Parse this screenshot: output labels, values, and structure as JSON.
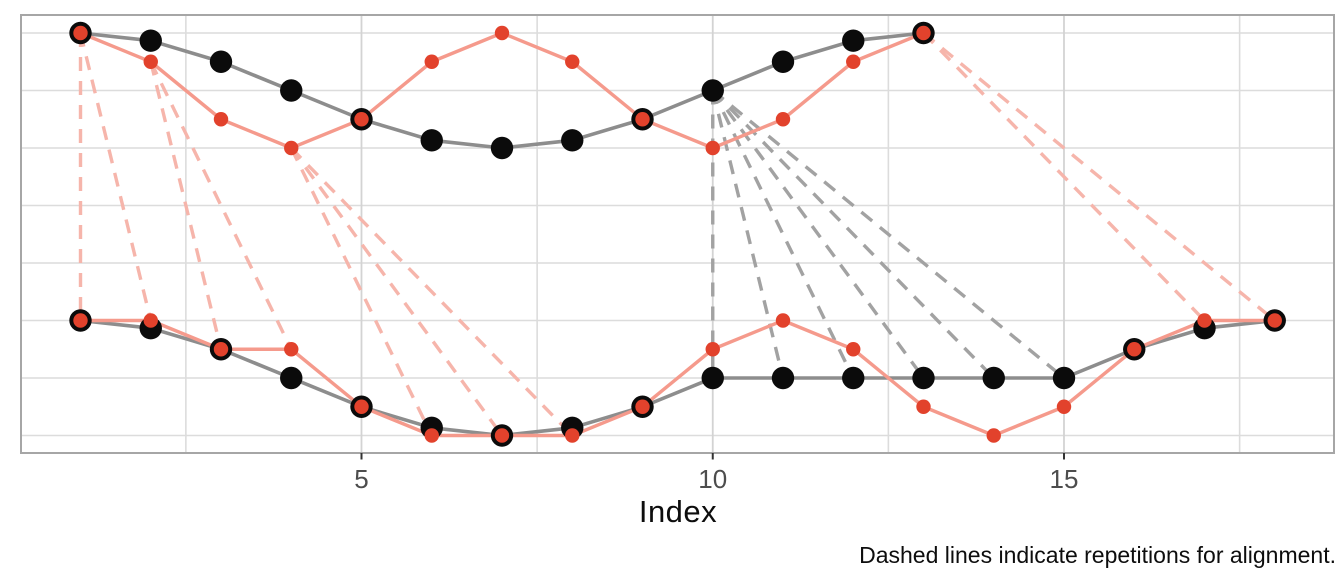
{
  "figure": {
    "xlabel": "Index",
    "caption": "Dashed lines indicate repetitions for alignment."
  },
  "colors": {
    "black_point": "#0b0b0b",
    "red_point": "#e2422c",
    "gray_line": "#8d8d8d",
    "salmon_line": "#f59a8c",
    "gray_dash": "#a2a2a2",
    "pink_dash": "#f6b5ab",
    "gridline_minor": "#dcdcdc",
    "gridline_major": "#d3d3d3",
    "panel_border": "#a6a6a6",
    "tick_mark": "#333333",
    "tick_label": "#4d4d4d"
  },
  "chart_data": {
    "type": "line",
    "title": "",
    "xlabel": "Index",
    "ylabel": "",
    "caption": "Dashed lines indicate repetitions for alignment.",
    "grid": "on",
    "legend": "none",
    "x_ticks": [
      5,
      10,
      15
    ],
    "x_minor_gridlines": [
      2.5,
      7.5,
      12.5,
      17.5
    ],
    "xlim": [
      0.15,
      18.85
    ],
    "rows": [
      "original-top",
      "aligned-bottom"
    ],
    "series": [
      {
        "name": "top-black",
        "row": "original",
        "color": "#0b0b0b",
        "x": [
          1,
          2,
          3,
          4,
          5,
          6,
          7,
          8,
          9,
          10,
          11,
          12,
          13
        ],
        "values": [
          1,
          0.866,
          0.5,
          0,
          -0.5,
          -0.866,
          -1,
          -0.866,
          -0.5,
          0,
          0.5,
          0.866,
          1
        ]
      },
      {
        "name": "top-red",
        "row": "original",
        "color": "#e2422c",
        "x": [
          1,
          2,
          3,
          4,
          5,
          6,
          7,
          8,
          9,
          10,
          11,
          12,
          13
        ],
        "values": [
          1,
          0.5,
          -0.5,
          -1,
          -0.5,
          0.5,
          1,
          0.5,
          -0.5,
          -1,
          -0.5,
          0.5,
          1
        ]
      },
      {
        "name": "bottom-black",
        "row": "aligned",
        "color": "#0b0b0b",
        "x": [
          1,
          2,
          3,
          4,
          5,
          6,
          7,
          8,
          9,
          10,
          11,
          12,
          13,
          14,
          15,
          16,
          17,
          18
        ],
        "values": [
          1,
          0.866,
          0.5,
          0,
          -0.5,
          -0.866,
          -1,
          -0.866,
          -0.5,
          0,
          0,
          0,
          0,
          0,
          0,
          0.5,
          0.866,
          1
        ]
      },
      {
        "name": "bottom-red",
        "row": "aligned",
        "color": "#e2422c",
        "x": [
          1,
          2,
          3,
          4,
          5,
          6,
          7,
          8,
          9,
          10,
          11,
          12,
          13,
          14,
          15,
          16,
          17,
          18
        ],
        "values": [
          1,
          1,
          0.5,
          0.5,
          -0.5,
          -1,
          -1,
          -1,
          -0.5,
          0.5,
          1,
          0.5,
          -0.5,
          -1,
          -0.5,
          0.5,
          1,
          1
        ]
      }
    ],
    "coincident_points_rings": {
      "description": "red dot drawn on top of black dot where both series share a value",
      "original_row_indices": [
        1,
        5,
        9,
        13
      ],
      "aligned_row_indices": [
        1,
        3,
        5,
        7,
        9,
        16,
        18
      ]
    },
    "repetition_links": [
      {
        "series": "red",
        "from_original_index": 1,
        "to_aligned_indices": [
          1,
          2
        ]
      },
      {
        "series": "red",
        "from_original_index": 2,
        "to_aligned_indices": [
          3,
          4
        ]
      },
      {
        "series": "red",
        "from_original_index": 4,
        "to_aligned_indices": [
          6,
          7,
          8
        ]
      },
      {
        "series": "red",
        "from_original_index": 13,
        "to_aligned_indices": [
          17,
          18
        ]
      },
      {
        "series": "black",
        "from_original_index": 10,
        "to_aligned_indices": [
          10,
          11,
          12,
          13,
          14,
          15
        ]
      }
    ]
  }
}
